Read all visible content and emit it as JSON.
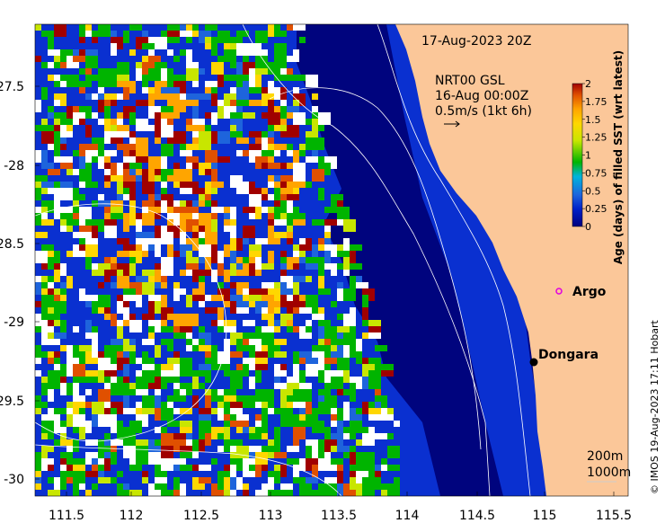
{
  "header": {
    "date_label": "17-Aug-2023 20Z",
    "product_label": "NRT00 GSL",
    "valid_time_label": "16-Aug 00:00Z",
    "vector_scale_label": "0.5m/s (1kt 6h)"
  },
  "axes": {
    "x_ticks": [
      "111.5",
      "112",
      "112.5",
      "113",
      "113.5",
      "114",
      "114.5",
      "115",
      "115.5"
    ],
    "y_ticks": [
      "-27.5",
      "-28",
      "-28.5",
      "-29",
      "-29.5",
      "-30"
    ]
  },
  "colorbar": {
    "title": "Age (days) of filled SST (wrt latest)",
    "ticks": [
      "0",
      "0.25",
      "0.5",
      "0.75",
      "1",
      "1.25",
      "1.5",
      "1.75",
      "2"
    ],
    "colors": [
      "#00007f",
      "#0020c8",
      "#1e64dc",
      "#00b4dc",
      "#00b400",
      "#c8e600",
      "#ffd700",
      "#ffa500",
      "#e05000",
      "#a00000"
    ]
  },
  "places": {
    "argo_label": "Argo",
    "dongara_label": "Dongara"
  },
  "legend": {
    "contour_200m": "200m",
    "contour_1000m": "1000m"
  },
  "credit": "© IMOS 19-Aug-2023 17:11 Hobart",
  "palette": {
    "land": "#fbc799",
    "deep_ocean": "#00047e",
    "shelf_water": "#0a30d0",
    "no_data": "#ffffff",
    "argo_marker": "#e000e0"
  }
}
